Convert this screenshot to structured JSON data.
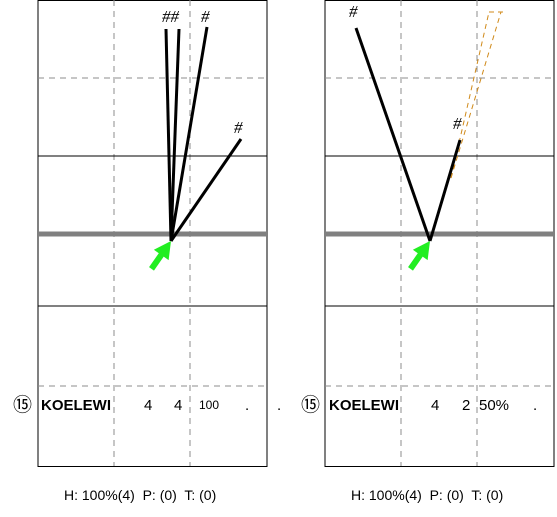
{
  "panels": [
    {
      "id": "left",
      "row": {
        "badge": "⑮",
        "name": "KOELEWI",
        "v1": "4",
        "v2": "4",
        "v3": "100",
        "dot1": ".",
        "dot2": "."
      },
      "footer": {
        "h": "H: 100%(4)",
        "p": "P: (0)",
        "t": "T: (0)"
      },
      "hash_labels": [
        "##",
        "#",
        "#"
      ]
    },
    {
      "id": "right",
      "row": {
        "badge": "⑮",
        "name": "KOELEWI",
        "v1": "4",
        "v2": "2",
        "v3": "50%",
        "dot1": "."
      },
      "footer": {
        "h": "H: 100%(4)",
        "p": "P: (0)",
        "t": "T: (0)"
      },
      "hash_labels": [
        "#",
        "#"
      ]
    }
  ],
  "colors": {
    "frame": "#000000",
    "grid_dashed": "#8c8c8c",
    "baseline": "#808080",
    "arrow": "#22ee22",
    "ghost_line": "#d08a1a"
  },
  "icons": [
    "green-arrow-icon"
  ]
}
